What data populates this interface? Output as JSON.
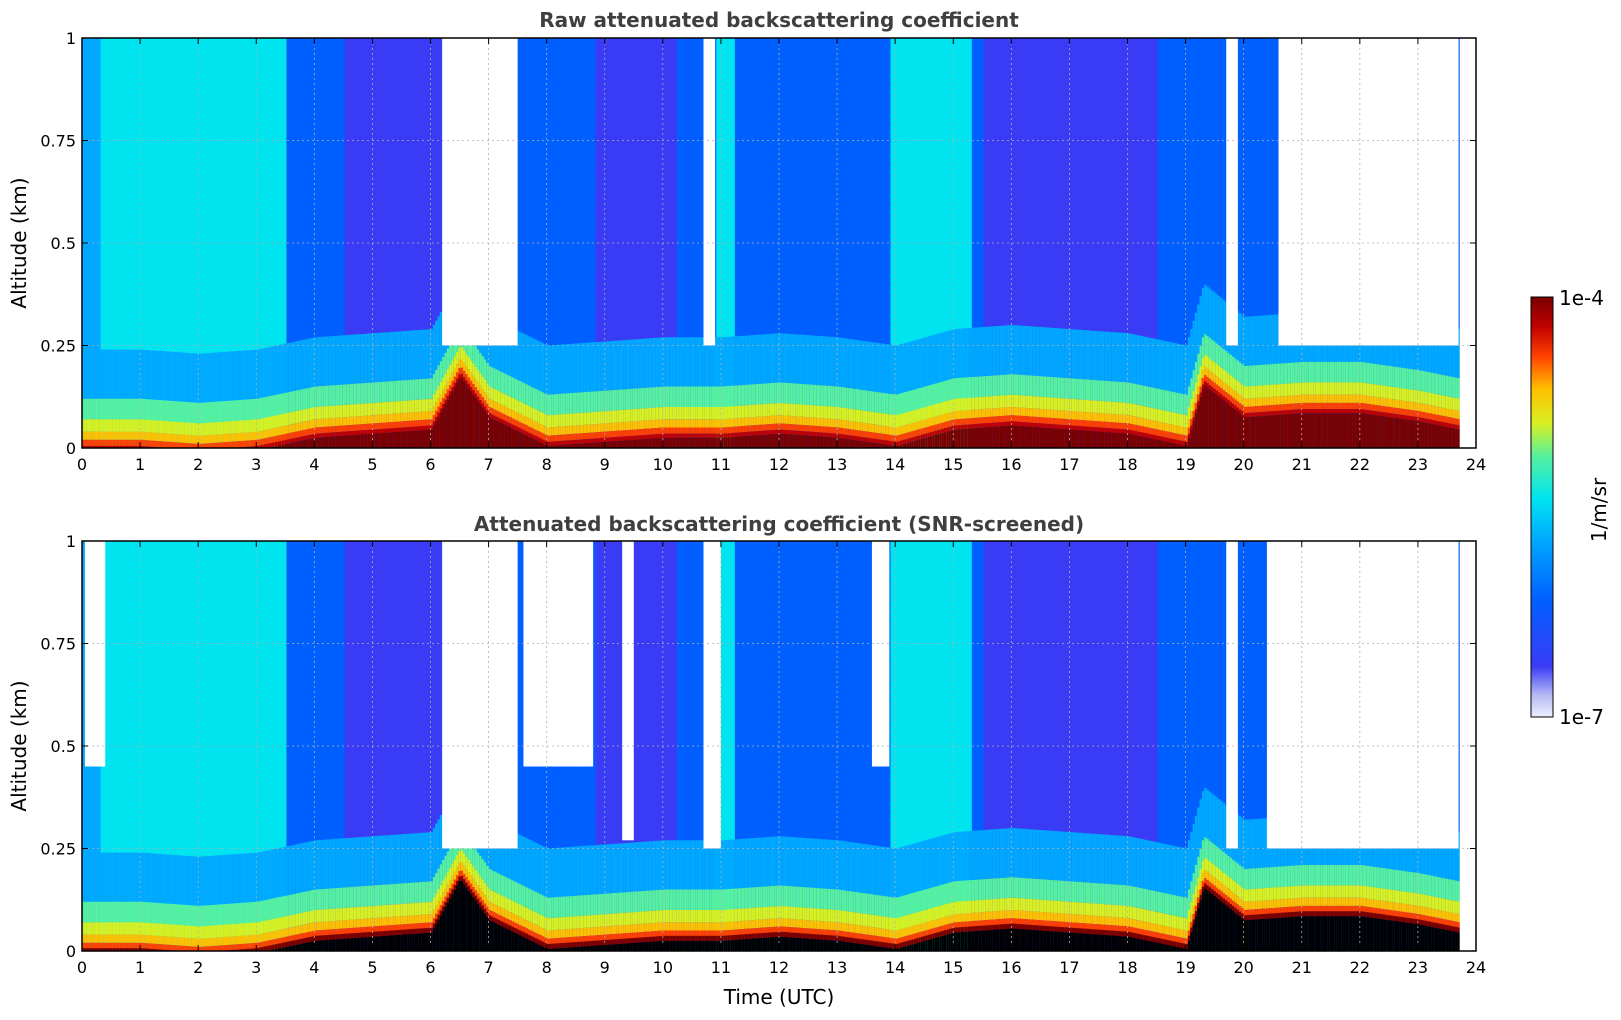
{
  "chart_data": [
    {
      "type": "heatmap",
      "title": "Raw attenuated backscattering coefficient",
      "xlabel": "",
      "ylabel": "Altitude (km)",
      "xlim": [
        0,
        24
      ],
      "ylim": [
        0,
        1
      ],
      "xticks": [
        "0",
        "1",
        "2",
        "3",
        "4",
        "5",
        "6",
        "7",
        "8",
        "9",
        "10",
        "11",
        "12",
        "13",
        "14",
        "15",
        "16",
        "17",
        "18",
        "19",
        "20",
        "21",
        "22",
        "23",
        "24"
      ],
      "yticks": [
        "0",
        "0.25",
        "0.5",
        "0.75",
        "1"
      ],
      "grid": true,
      "boundary_layer_top_km": [
        {
          "t": 0,
          "h": 0.12
        },
        {
          "t": 1,
          "h": 0.12
        },
        {
          "t": 2,
          "h": 0.11
        },
        {
          "t": 3,
          "h": 0.12
        },
        {
          "t": 4,
          "h": 0.15
        },
        {
          "t": 5,
          "h": 0.16
        },
        {
          "t": 6,
          "h": 0.17
        },
        {
          "t": 6.5,
          "h": 0.3
        },
        {
          "t": 7,
          "h": 0.2
        },
        {
          "t": 8,
          "h": 0.13
        },
        {
          "t": 9,
          "h": 0.14
        },
        {
          "t": 10,
          "h": 0.15
        },
        {
          "t": 11,
          "h": 0.15
        },
        {
          "t": 12,
          "h": 0.16
        },
        {
          "t": 13,
          "h": 0.15
        },
        {
          "t": 14,
          "h": 0.13
        },
        {
          "t": 15,
          "h": 0.17
        },
        {
          "t": 16,
          "h": 0.18
        },
        {
          "t": 17,
          "h": 0.17
        },
        {
          "t": 18,
          "h": 0.16
        },
        {
          "t": 19,
          "h": 0.13
        },
        {
          "t": 19.3,
          "h": 0.28
        },
        {
          "t": 20,
          "h": 0.2
        },
        {
          "t": 21,
          "h": 0.21
        },
        {
          "t": 22,
          "h": 0.21
        },
        {
          "t": 23,
          "h": 0.19
        },
        {
          "t": 23.7,
          "h": 0.17
        }
      ],
      "no_signal_periods_utc": [
        [
          6.2,
          7.5
        ],
        [
          10.7,
          10.9
        ],
        [
          19.7,
          19.9
        ],
        [
          20.6,
          23.7
        ]
      ]
    },
    {
      "type": "heatmap",
      "title": "Attenuated backscattering coefficient (SNR-screened)",
      "xlabel": "Time (UTC)",
      "ylabel": "Altitude (km)",
      "xlim": [
        0,
        24
      ],
      "ylim": [
        0,
        1
      ],
      "xticks": [
        "0",
        "1",
        "2",
        "3",
        "4",
        "5",
        "6",
        "7",
        "8",
        "9",
        "10",
        "11",
        "12",
        "13",
        "14",
        "15",
        "16",
        "17",
        "18",
        "19",
        "20",
        "21",
        "22",
        "23",
        "24"
      ],
      "yticks": [
        "0",
        "0.25",
        "0.5",
        "0.75",
        "1"
      ],
      "grid": true,
      "screened_periods_utc": [
        [
          0.05,
          0.4
        ],
        [
          6.2,
          7.5
        ],
        [
          7.6,
          8.8
        ],
        [
          9.3,
          9.5
        ],
        [
          10.7,
          11.0
        ],
        [
          13.6,
          13.9
        ],
        [
          19.7,
          19.9
        ],
        [
          20.4,
          23.7
        ]
      ]
    }
  ],
  "colorbar": {
    "label": "1/m/sr",
    "max_label": "1e-4",
    "min_label": "1e-7",
    "scale": "log",
    "colors": [
      "#eef0ff",
      "#b8bcf4",
      "#3a3cf5",
      "#0060ff",
      "#00a8ff",
      "#00e4f0",
      "#56f0a0",
      "#d8f020",
      "#ffc000",
      "#ff4000",
      "#c00000",
      "#7a0000"
    ]
  }
}
